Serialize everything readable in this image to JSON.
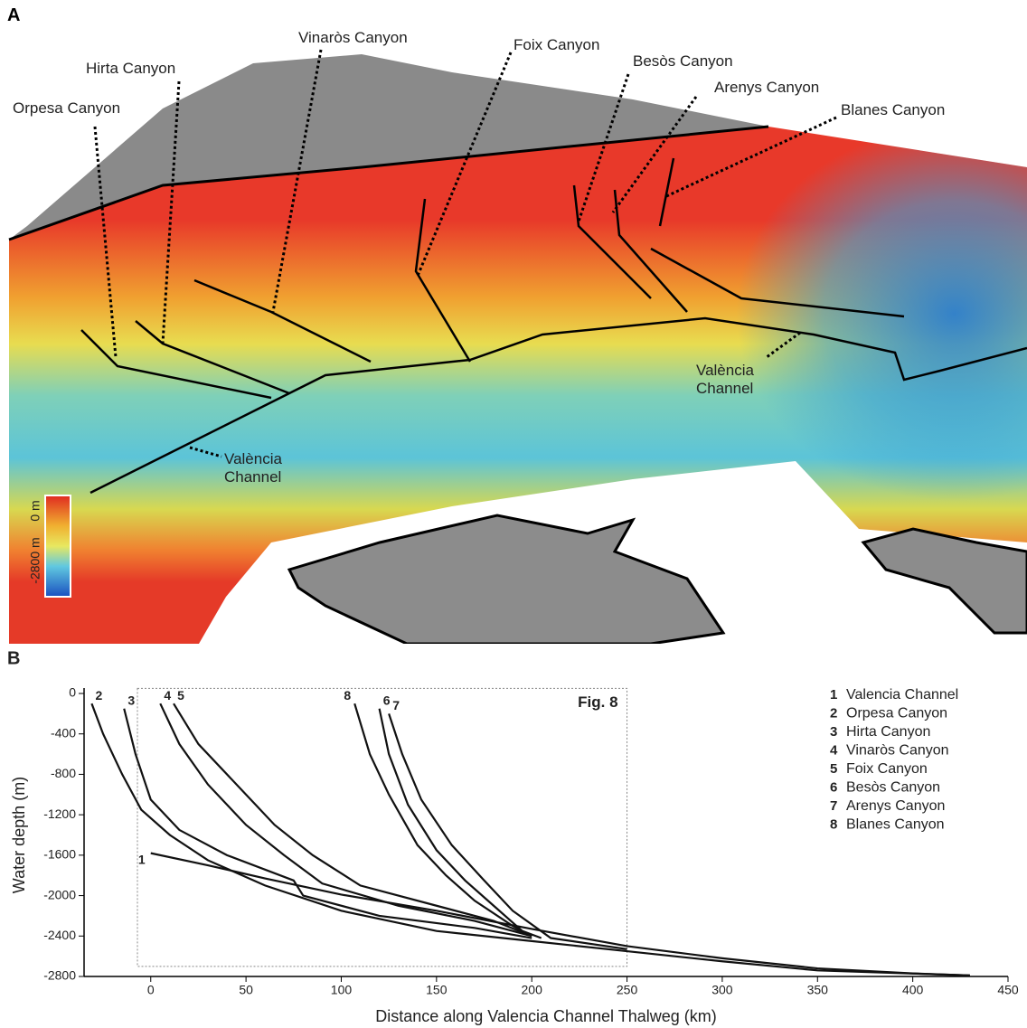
{
  "panel_a": {
    "label": "A",
    "annotations": [
      "Orpesa Canyon",
      "Hirta Canyon",
      "Vinaròs Canyon",
      "Foix Canyon",
      "Besòs Canyon",
      "Arenys Canyon",
      "Blanes Canyon",
      "València Channel",
      "València Channel"
    ],
    "colorbar": {
      "top_label": "0 m",
      "bottom_label": "-2800 m"
    }
  },
  "chart_data": {
    "type": "line",
    "panel_label": "B",
    "x_label": "Distance along Valencia Channel Thalweg (km)",
    "y_label": "Water depth (m)",
    "xlim": [
      -35,
      450
    ],
    "ylim": [
      -2800,
      0
    ],
    "xticks": [
      0,
      50,
      100,
      150,
      200,
      250,
      300,
      350,
      400,
      450
    ],
    "yticks": [
      0,
      -400,
      -800,
      -1200,
      -1600,
      -2000,
      -2400,
      -2800
    ],
    "box": {
      "label": "Fig. 8",
      "xlim": [
        -7,
        250
      ],
      "ylim": [
        -2700,
        50
      ]
    },
    "series": [
      {
        "label": "1",
        "name": "Valencia Channel",
        "color": "#111111",
        "x": [
          0,
          30,
          60,
          100,
          150,
          200,
          250,
          300,
          350,
          400,
          430
        ],
        "values": [
          -1580,
          -1700,
          -1830,
          -1990,
          -2150,
          -2330,
          -2500,
          -2620,
          -2720,
          -2770,
          -2790
        ]
      },
      {
        "label": "2",
        "name": "Orpesa Canyon",
        "color": "#111111",
        "x": [
          -31,
          -25,
          -15,
          -5,
          10,
          30,
          60,
          100,
          150,
          200,
          250,
          300,
          350,
          430
        ],
        "values": [
          -100,
          -400,
          -800,
          -1150,
          -1400,
          -1650,
          -1900,
          -2150,
          -2350,
          -2450,
          -2550,
          -2650,
          -2740,
          -2790
        ]
      },
      {
        "label": "3",
        "name": "Hirta Canyon",
        "color": "#111111",
        "x": [
          -14,
          -8,
          0,
          15,
          40,
          75,
          80,
          120,
          170,
          200
        ],
        "values": [
          -150,
          -600,
          -1050,
          -1350,
          -1600,
          -1850,
          -2000,
          -2200,
          -2320,
          -2420
        ]
      },
      {
        "label": "4",
        "name": "Vinaròs Canyon",
        "color": "#111111",
        "x": [
          5,
          15,
          30,
          50,
          70,
          90,
          130,
          170,
          200
        ],
        "values": [
          -100,
          -500,
          -900,
          -1300,
          -1600,
          -1880,
          -2100,
          -2250,
          -2400
        ]
      },
      {
        "label": "5",
        "name": "Foix Canyon",
        "color": "#111111",
        "x": [
          12,
          25,
          45,
          65,
          85,
          110,
          150,
          180,
          200
        ],
        "values": [
          -100,
          -500,
          -900,
          -1300,
          -1600,
          -1900,
          -2100,
          -2250,
          -2400
        ]
      },
      {
        "label": "6",
        "name": "Besòs Canyon",
        "color": "#111111",
        "x": [
          120,
          125,
          135,
          150,
          165,
          180,
          195,
          205
        ],
        "values": [
          -150,
          -600,
          -1100,
          -1550,
          -1850,
          -2100,
          -2350,
          -2420
        ]
      },
      {
        "label": "7",
        "name": "Arenys Canyon",
        "color": "#111111",
        "x": [
          125,
          132,
          142,
          158,
          175,
          190,
          210,
          250
        ],
        "values": [
          -200,
          -600,
          -1050,
          -1500,
          -1850,
          -2150,
          -2420,
          -2530
        ]
      },
      {
        "label": "8",
        "name": "Blanes Canyon",
        "color": "#111111",
        "x": [
          107,
          115,
          125,
          140,
          155,
          170,
          190,
          200
        ],
        "values": [
          -100,
          -600,
          -1000,
          -1500,
          -1800,
          -2050,
          -2300,
          -2400
        ]
      }
    ]
  }
}
